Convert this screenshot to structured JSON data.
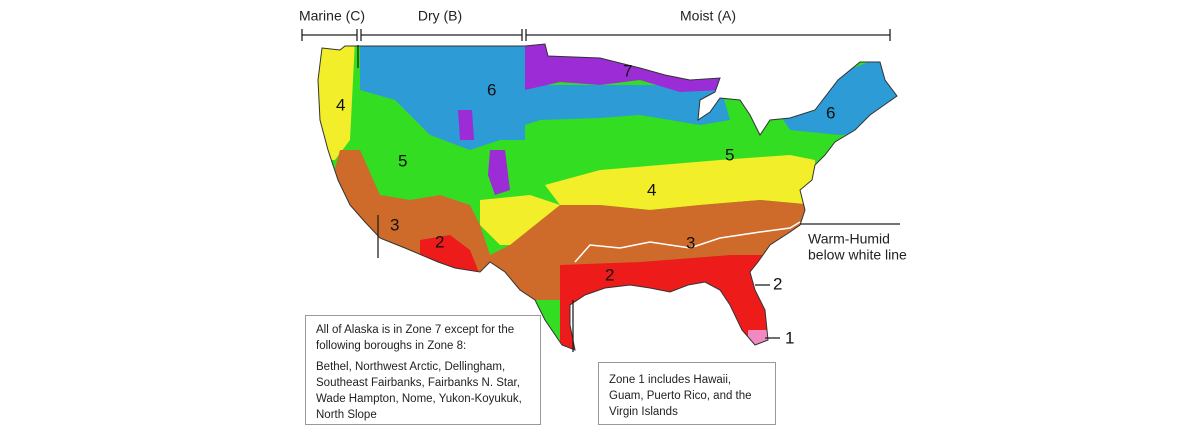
{
  "regions": [
    {
      "label": "Marine (C)"
    },
    {
      "label": "Dry (B)"
    },
    {
      "label": "Moist (A)"
    }
  ],
  "zones": [
    {
      "label": "7"
    },
    {
      "label": "6"
    },
    {
      "label": "6"
    },
    {
      "label": "5"
    },
    {
      "label": "5"
    },
    {
      "label": "4"
    },
    {
      "label": "4"
    },
    {
      "label": "3"
    },
    {
      "label": "3"
    },
    {
      "label": "2"
    },
    {
      "label": "2"
    }
  ],
  "warm_humid": {
    "line1": "Warm-Humid",
    "line2": "below white line"
  },
  "callouts": [
    {
      "label": "2"
    },
    {
      "label": "1"
    }
  ],
  "alaska_note": {
    "intro": "All of Alaska is in Zone 7 except for the following boroughs in Zone 8:",
    "boroughs": "Bethel, Northwest Arctic, Dellingham, Southeast Fairbanks, Fairbanks N. Star, Wade Hampton, Nome, Yukon-Koyukuk, North Slope"
  },
  "zone1_note": "Zone 1 includes Hawaii, Guam, Puerto Rico, and the Virgin Islands"
}
